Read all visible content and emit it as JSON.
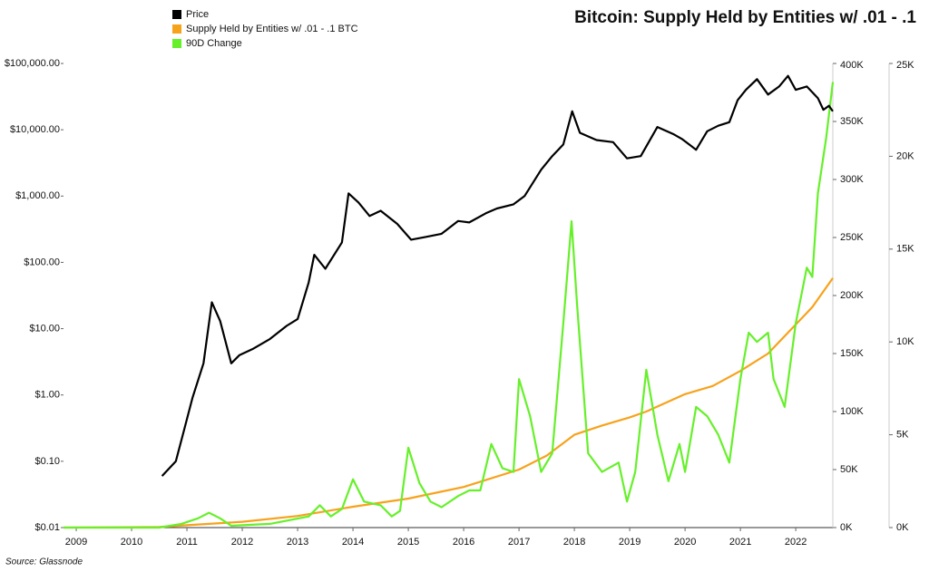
{
  "chart_data": {
    "type": "line",
    "title": "Bitcoin: Supply Held by Entities w/ .01 - .1",
    "source": "Source: Glassnode",
    "xlim": [
      2008.77,
      2022.67
    ],
    "xticks": [
      2009,
      2010,
      2011,
      2012,
      2013,
      2014,
      2015,
      2016,
      2017,
      2018,
      2019,
      2020,
      2021,
      2022
    ],
    "ylim": [
      0.01,
      100000
    ],
    "log_scale": true,
    "yticks": [
      {
        "value": 0.01,
        "label": "$0.01"
      },
      {
        "value": 0.1,
        "label": "$0.10"
      },
      {
        "value": 1,
        "label": "$1.00"
      },
      {
        "value": 10,
        "label": "$10.00"
      },
      {
        "value": 100,
        "label": "$100.00"
      },
      {
        "value": 1000,
        "label": "$1,000.00"
      },
      {
        "value": 10000,
        "label": "$10,000.00"
      },
      {
        "value": 100000,
        "label": "$100,000.00"
      }
    ],
    "y2lim": [
      0,
      400000
    ],
    "y2ticks": [
      {
        "value": 0,
        "label": "0K"
      },
      {
        "value": 50000,
        "label": "50K"
      },
      {
        "value": 100000,
        "label": "100K"
      },
      {
        "value": 150000,
        "label": "150K"
      },
      {
        "value": 200000,
        "label": "200K"
      },
      {
        "value": 250000,
        "label": "250K"
      },
      {
        "value": 300000,
        "label": "300K"
      },
      {
        "value": 350000,
        "label": "350K"
      },
      {
        "value": 400000,
        "label": "400K"
      }
    ],
    "y3lim": [
      0,
      25000
    ],
    "y3ticks": [
      {
        "value": 0,
        "label": "0K"
      },
      {
        "value": 5000,
        "label": "5K"
      },
      {
        "value": 10000,
        "label": "10K"
      },
      {
        "value": 15000,
        "label": "15K"
      },
      {
        "value": 20000,
        "label": "20K"
      },
      {
        "value": 25000,
        "label": "25K"
      }
    ],
    "series": [
      {
        "name": "Price",
        "color": "#000000",
        "axis": "y",
        "x": [
          2010.55,
          2010.8,
          2010.95,
          2011.1,
          2011.3,
          2011.45,
          2011.6,
          2011.8,
          2011.95,
          2012.2,
          2012.5,
          2012.8,
          2013.0,
          2013.2,
          2013.3,
          2013.5,
          2013.8,
          2013.92,
          2014.1,
          2014.3,
          2014.5,
          2014.8,
          2015.05,
          2015.3,
          2015.6,
          2015.9,
          2016.1,
          2016.4,
          2016.6,
          2016.9,
          2017.1,
          2017.4,
          2017.6,
          2017.8,
          2017.96,
          2018.1,
          2018.4,
          2018.7,
          2018.95,
          2019.2,
          2019.5,
          2019.8,
          2019.95,
          2020.2,
          2020.4,
          2020.6,
          2020.8,
          2020.95,
          2021.1,
          2021.3,
          2021.5,
          2021.7,
          2021.86,
          2022.0,
          2022.2,
          2022.4,
          2022.5,
          2022.6,
          2022.67
        ],
        "values": [
          0.06,
          0.1,
          0.3,
          0.9,
          3,
          25,
          13,
          3,
          4,
          5,
          7,
          11,
          14,
          50,
          130,
          80,
          200,
          1100,
          800,
          500,
          600,
          380,
          220,
          240,
          270,
          420,
          400,
          550,
          650,
          750,
          1000,
          2500,
          4000,
          6000,
          19000,
          9000,
          7000,
          6500,
          3700,
          4000,
          11000,
          8500,
          7200,
          5000,
          9500,
          11500,
          13000,
          28000,
          40000,
          58000,
          34000,
          45000,
          65000,
          40000,
          45000,
          30000,
          20000,
          23000,
          19000
        ]
      },
      {
        "name": "Supply Held by Entities w/ .01 - .1 BTC",
        "color": "#f7a21b",
        "axis": "y2",
        "x": [
          2008.77,
          2010.5,
          2011,
          2012,
          2013,
          2014,
          2015,
          2016,
          2017,
          2017.5,
          2018,
          2018.5,
          2019,
          2019.3,
          2020,
          2020.5,
          2021,
          2021.5,
          2022,
          2022.3,
          2022.67
        ],
        "values": [
          0,
          500,
          2000,
          5000,
          10000,
          18000,
          25000,
          35000,
          50000,
          62000,
          80000,
          88000,
          95000,
          100000,
          115000,
          122000,
          135000,
          150000,
          175000,
          190000,
          215000
        ]
      },
      {
        "name": "90D Change",
        "color": "#66f02a",
        "axis": "y3",
        "x": [
          2008.77,
          2010.5,
          2010.9,
          2011.2,
          2011.4,
          2011.6,
          2011.8,
          2012.5,
          2013.2,
          2013.4,
          2013.6,
          2013.8,
          2014.0,
          2014.2,
          2014.5,
          2014.7,
          2014.85,
          2015.0,
          2015.2,
          2015.4,
          2015.6,
          2015.9,
          2016.1,
          2016.3,
          2016.5,
          2016.7,
          2016.9,
          2017.0,
          2017.2,
          2017.4,
          2017.6,
          2017.8,
          2017.95,
          2018.05,
          2018.25,
          2018.5,
          2018.8,
          2018.95,
          2019.1,
          2019.3,
          2019.5,
          2019.7,
          2019.9,
          2020.0,
          2020.2,
          2020.4,
          2020.6,
          2020.8,
          2021.0,
          2021.15,
          2021.3,
          2021.5,
          2021.6,
          2021.8,
          2022.0,
          2022.2,
          2022.3,
          2022.4,
          2022.55,
          2022.67
        ],
        "values": [
          0,
          0,
          200,
          500,
          800,
          500,
          100,
          200,
          600,
          1200,
          600,
          1000,
          2600,
          1400,
          1200,
          600,
          900,
          4300,
          2400,
          1400,
          1100,
          1700,
          2000,
          2000,
          4500,
          3200,
          3000,
          8000,
          6000,
          3000,
          4000,
          11000,
          16500,
          12000,
          4000,
          3000,
          3500,
          1400,
          3000,
          8500,
          5000,
          2500,
          4500,
          3000,
          6500,
          6000,
          5000,
          3500,
          8000,
          10500,
          10000,
          10500,
          8000,
          6500,
          11000,
          14000,
          13500,
          18000,
          21000,
          24000
        ]
      }
    ]
  }
}
